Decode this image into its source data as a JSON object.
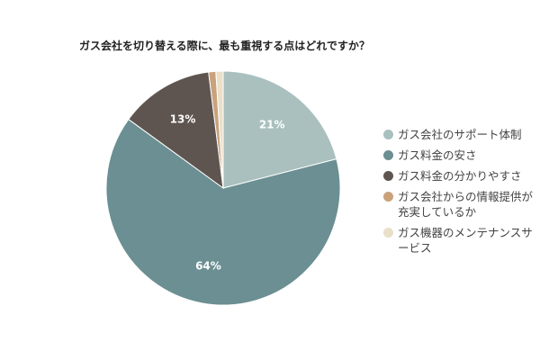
{
  "chart_data": {
    "type": "pie",
    "title": "ガス会社を切り替える際に、最も重視する点はどれですか？",
    "categories": [
      "ガス会社のサポート体制",
      "ガス料金の安さ",
      "ガス料金の分かりやすさ",
      "ガス会社からの情報提供が充実しているか",
      "ガス機器のメンテナンスサービス"
    ],
    "values": [
      21,
      64,
      13,
      1,
      1
    ],
    "value_labels": [
      "21%",
      "64%",
      "13%",
      null,
      null
    ],
    "colors": [
      "#a9c0bf",
      "#6b8f92",
      "#5f5550",
      "#c9a27c",
      "#eadfc8"
    ]
  }
}
